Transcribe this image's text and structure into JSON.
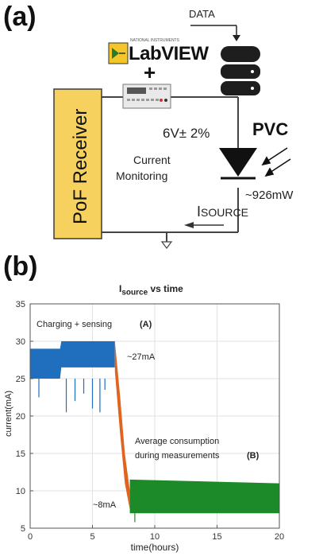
{
  "panel_a": {
    "label": "(a)",
    "data_label": "DATA",
    "labview_vendor": "NATIONAL INSTRUMENTS",
    "labview_logo": "LabVIEW",
    "plus": "+",
    "receiver": "PoF Receiver",
    "voltage": "6V± 2%",
    "pvc": "PVC",
    "monitoring_line1": "Current",
    "monitoring_line2": "Monitoring",
    "isource": "I",
    "isource_sub": "SOURCE",
    "power": "~926mW",
    "colors": {
      "receiver_fill": "#f7d15e",
      "wire": "#444444",
      "db": "#1e1e1e"
    },
    "icons": [
      "database-icon",
      "multimeter-icon",
      "photovoltaic-diode-icon",
      "light-arrows-icon",
      "ground-icon"
    ]
  },
  "panel_b": {
    "label": "(b)",
    "chart_data": {
      "type": "area",
      "title": "I",
      "title_sub": "source",
      "title_rest": " vs time",
      "xlabel": "time(hours)",
      "ylabel": "current(mA)",
      "xlim": [
        0,
        20
      ],
      "ylim": [
        5,
        35
      ],
      "xticks": [
        0,
        5,
        10,
        15,
        20
      ],
      "yticks": [
        5,
        10,
        15,
        20,
        25,
        30,
        35
      ],
      "grid": true,
      "series": [
        {
          "color": "#1f6fbe",
          "x": [
            0,
            2.4,
            2.5,
            6.8
          ],
          "low": [
            25,
            25,
            26.5,
            26.5
          ],
          "high": [
            29,
            29,
            30,
            30
          ]
        },
        {
          "color": "#e0641e",
          "x": [
            6.8,
            7.2,
            7.6,
            8.0
          ],
          "low": [
            26,
            18,
            11,
            7.5
          ],
          "high": [
            30,
            23,
            15,
            10
          ]
        },
        {
          "color": "#1d8a2a",
          "x": [
            8.0,
            20
          ],
          "low": [
            7,
            7
          ],
          "high": [
            11.5,
            11
          ]
        }
      ],
      "spikes": [
        {
          "x": 0.7,
          "y": 22.5
        },
        {
          "x": 2.9,
          "y": 20.5
        },
        {
          "x": 3.6,
          "y": 22
        },
        {
          "x": 4.3,
          "y": 23
        },
        {
          "x": 5.0,
          "y": 21
        },
        {
          "x": 5.6,
          "y": 20.5
        },
        {
          "x": 6.0,
          "y": 23.5
        },
        {
          "x": 8.4,
          "y": 5.8
        }
      ],
      "annotations": {
        "charging": "Charging + sensing",
        "label_a": "(A)",
        "current_27": "~27mA",
        "average_line1": "Average consumption",
        "average_line2": "during measurements",
        "label_b": "(B)",
        "current_8": "~8mA"
      }
    }
  }
}
